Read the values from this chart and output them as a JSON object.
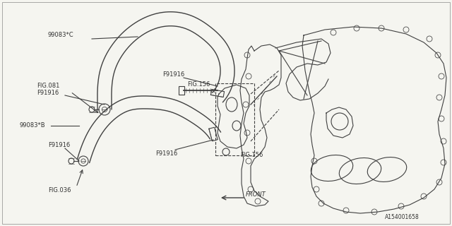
{
  "bg_color": "#f5f5f0",
  "line_color": "#404040",
  "text_color": "#303030",
  "fig_width": 6.4,
  "fig_height": 3.2,
  "dpi": 100,
  "labels": {
    "part_C": "99083*C",
    "part_B": "99083*B",
    "clamp1": "F91916",
    "clamp2": "F91916",
    "clamp3": "F91916",
    "clamp4": "F91916",
    "fig081": "FIG.081",
    "fig036": "FIG.036",
    "fig156a": "FIG.156",
    "fig156b": "FIG.156",
    "front": "FRONT",
    "diagram_id": "A154001658"
  }
}
